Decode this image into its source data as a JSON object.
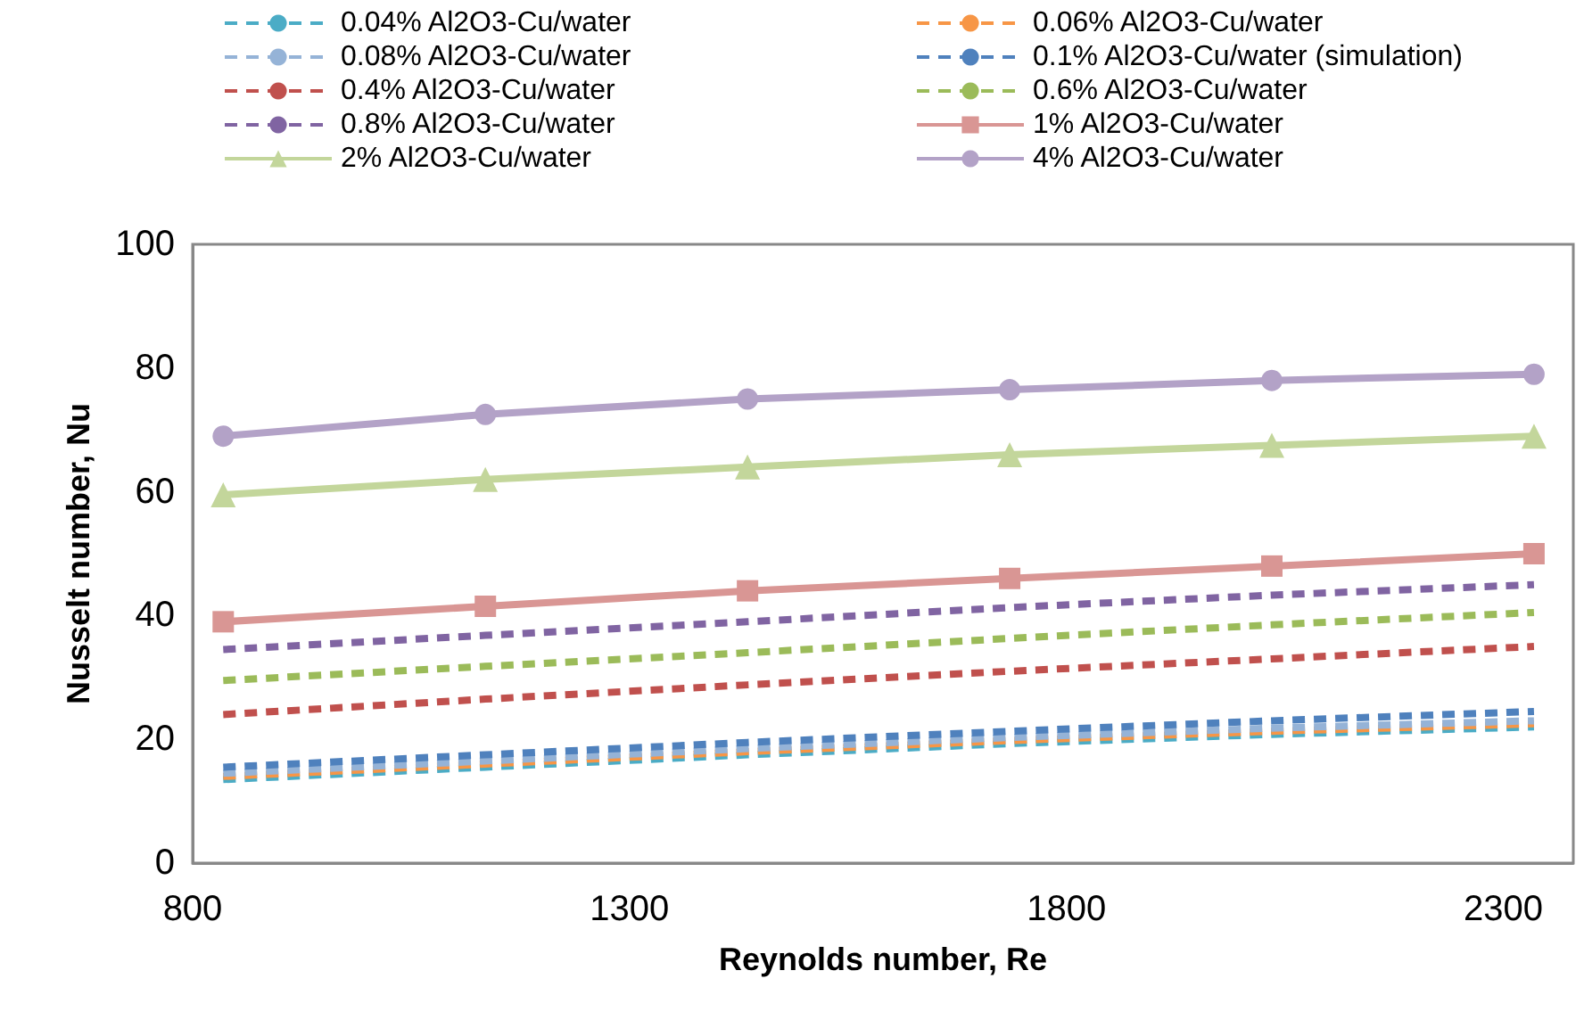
{
  "chart_data": {
    "type": "line",
    "xlabel": "Reynolds number, Re",
    "ylabel": "Nusselt number, Nu",
    "x": [
      835,
      1135,
      1435,
      1735,
      2035,
      2335
    ],
    "xlim": [
      800,
      2380
    ],
    "xticks": [
      800,
      1300,
      1800,
      2300
    ],
    "ylim": [
      0,
      100
    ],
    "yticks": [
      0,
      20,
      40,
      60,
      80,
      100
    ],
    "grid": false,
    "legend": "top",
    "series": [
      {
        "name": "0.04% Al2O3-Cu/water",
        "color": "#4bacc6",
        "line_style": "dashed",
        "marker": "none",
        "values": [
          13.5,
          15.5,
          17.5,
          19.3,
          20.8,
          22
        ]
      },
      {
        "name": "0.06% Al2O3-Cu/water",
        "color": "#f79646",
        "line_style": "dashed",
        "marker": "none",
        "values": [
          14,
          16,
          18,
          19.8,
          21.3,
          22.5
        ]
      },
      {
        "name": "0.08% Al2O3-Cu/water",
        "color": "#95b3d7",
        "line_style": "dashed",
        "marker": "none",
        "values": [
          14.5,
          16.5,
          18.5,
          20.3,
          21.8,
          23
        ]
      },
      {
        "name": "0.1% Al2O3-Cu/water (simulation)",
        "color": "#4f81bd",
        "line_style": "dashed",
        "marker": "none",
        "values": [
          15.5,
          17.5,
          19.5,
          21.3,
          23,
          24.5
        ]
      },
      {
        "name": "0.4% Al2O3-Cu/water",
        "color": "#c0504d",
        "line_style": "dashed",
        "marker": "none",
        "values": [
          24,
          26.5,
          28.8,
          31,
          33,
          35
        ]
      },
      {
        "name": "0.6% Al2O3-Cu/water",
        "color": "#9bbb59",
        "line_style": "dashed",
        "marker": "none",
        "values": [
          29.5,
          31.8,
          34,
          36.3,
          38.5,
          40.5
        ]
      },
      {
        "name": "0.8% Al2O3-Cu/water",
        "color": "#8064a2",
        "line_style": "dashed",
        "marker": "none",
        "values": [
          34.5,
          36.8,
          39,
          41.3,
          43.3,
          45
        ]
      },
      {
        "name": "1% Al2O3-Cu/water",
        "color": "#d99694",
        "line_style": "solid",
        "marker": "square",
        "values": [
          39,
          41.5,
          44,
          46,
          48,
          50
        ]
      },
      {
        "name": "2% Al2O3-Cu/water",
        "color": "#c3d69b",
        "line_style": "solid",
        "marker": "triangle",
        "values": [
          59.5,
          62,
          64,
          66,
          67.5,
          69
        ]
      },
      {
        "name": "4% Al2O3-Cu/water",
        "color": "#b3a2c7",
        "line_style": "solid",
        "marker": "circle",
        "values": [
          69,
          72.5,
          75,
          76.5,
          78,
          79
        ]
      }
    ]
  }
}
